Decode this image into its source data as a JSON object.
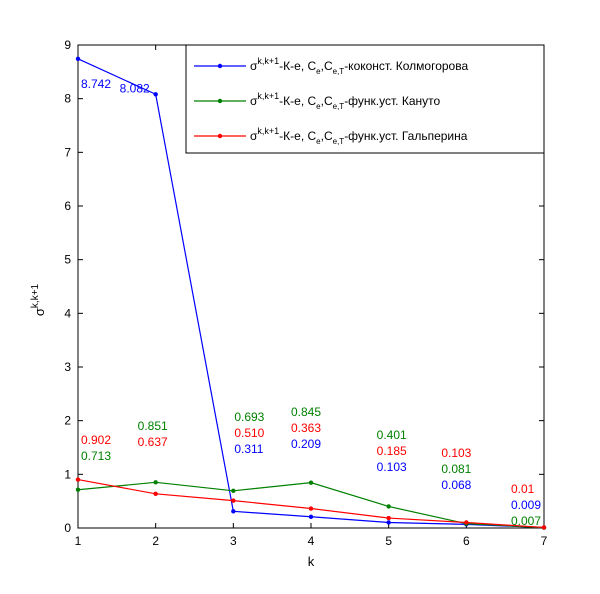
{
  "chart_data": {
    "type": "line",
    "x": [
      1,
      2,
      3,
      4,
      5,
      6,
      7
    ],
    "xlabel": "k",
    "ylabel_base": "σ",
    "ylabel_sup": "k,k+1",
    "xlim": [
      1,
      7
    ],
    "ylim": [
      0,
      9
    ],
    "xticks": [
      1,
      2,
      3,
      4,
      5,
      6,
      7
    ],
    "yticks": [
      0,
      1,
      2,
      3,
      4,
      5,
      6,
      7,
      8,
      9
    ],
    "grid": false,
    "legend_position": "top-right",
    "series": [
      {
        "key": "kolmogorov",
        "color": "#0000ff",
        "values": [
          8.742,
          8.082,
          0.311,
          0.209,
          0.103,
          0.068,
          0.009
        ],
        "labels": [
          "8.742",
          "8.082",
          "0.311",
          "0.209",
          "0.103",
          "0.068",
          "0.009"
        ],
        "legend": {
          "base": "σ",
          "sup": "k,k+1",
          "p1": "-К-е, С",
          "sub1": "е",
          "p2": ",С",
          "sub2": "е,Т",
          "p3": "-коконст. Колмогорова"
        }
      },
      {
        "key": "kanuto",
        "color": "#008000",
        "values": [
          0.713,
          0.851,
          0.693,
          0.845,
          0.401,
          0.081,
          0.007
        ],
        "labels": [
          "0.713",
          "0.851",
          "0.693",
          "0.845",
          "0.401",
          "0.081",
          "0.007"
        ],
        "legend": {
          "base": "σ",
          "sup": "k,k+1",
          "p1": "-К-е, С",
          "sub1": "е",
          "p2": ",С",
          "sub2": "е,Т",
          "p3": "-функ.уст. Кануто"
        }
      },
      {
        "key": "galperin",
        "color": "#ff0000",
        "values": [
          0.902,
          0.637,
          0.51,
          0.363,
          0.185,
          0.103,
          0.01
        ],
        "labels": [
          "0.902",
          "0.637",
          "0.510",
          "0.363",
          "0.185",
          "0.103",
          "0.01"
        ],
        "legend": {
          "base": "σ",
          "sup": "k,k+1",
          "p1": "-К-е, С",
          "sub1": "е",
          "p2": ",С",
          "sub2": "е,Т",
          "p3": "-функ.уст. Гальперина"
        }
      }
    ]
  }
}
